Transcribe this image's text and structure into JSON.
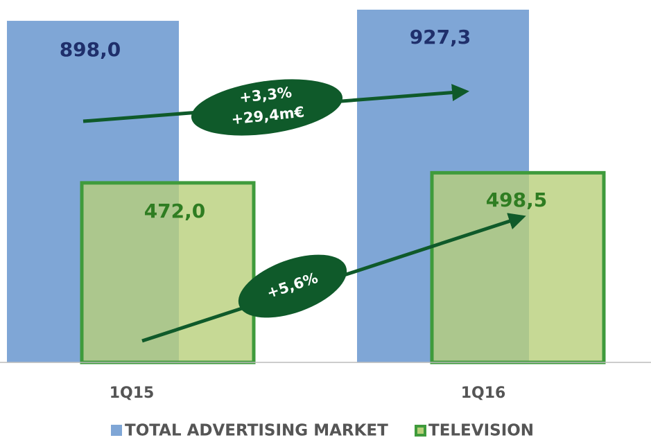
{
  "chart_data": {
    "type": "bar",
    "categories": [
      "1Q15",
      "1Q16"
    ],
    "series": [
      {
        "name": "TOTAL ADVERTISING MARKET",
        "color": "#7fa6d6",
        "values": [
          898.0,
          927.3
        ],
        "value_labels": [
          "898,0",
          "927,3"
        ],
        "label_color": "#1f2f6b"
      },
      {
        "name": "TELEVISION",
        "color": "#b8cf7a",
        "border": "#3f9b3c",
        "values": [
          472.0,
          498.5
        ],
        "value_labels": [
          "472,0",
          "498,5"
        ],
        "label_color": "#2f7d22"
      }
    ],
    "ylim": [
      0,
      950
    ],
    "annotations": [
      "+3,3%",
      "+29,4m€",
      "+5,6%"
    ]
  }
}
